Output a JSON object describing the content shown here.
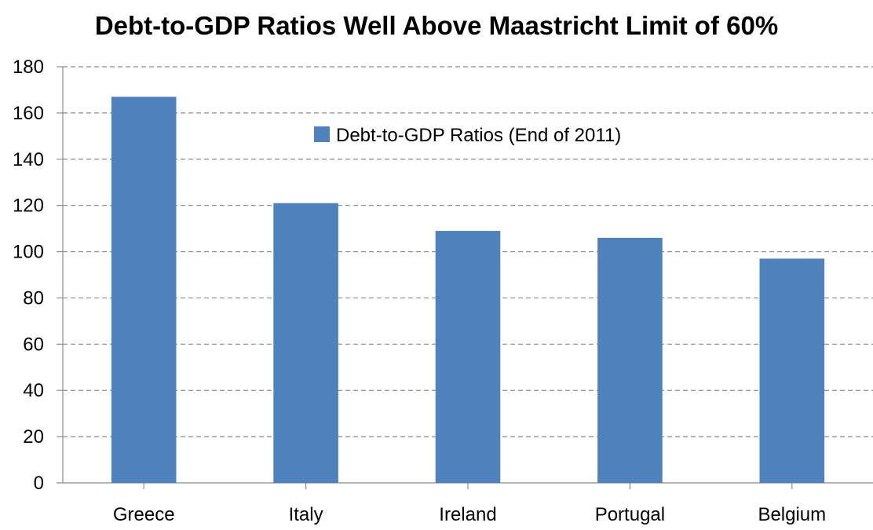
{
  "chart_data": {
    "type": "bar",
    "title": "Debt-to-GDP Ratios Well Above Maastricht Limit of 60%",
    "xlabel": "",
    "ylabel": "",
    "categories": [
      "Greece",
      "Italy",
      "Ireland",
      "Portugal",
      "Belgium"
    ],
    "series": [
      {
        "name": "Debt-to-GDP Ratios (End of 2011)",
        "values": [
          167,
          121,
          109,
          106,
          97
        ],
        "color": "#4f81bd"
      }
    ],
    "ylim": [
      0,
      180
    ],
    "yticks": [
      0,
      20,
      40,
      60,
      80,
      100,
      120,
      140,
      160,
      180
    ],
    "grid": true,
    "grid_style": "dashed",
    "legend_position": "top-center"
  }
}
